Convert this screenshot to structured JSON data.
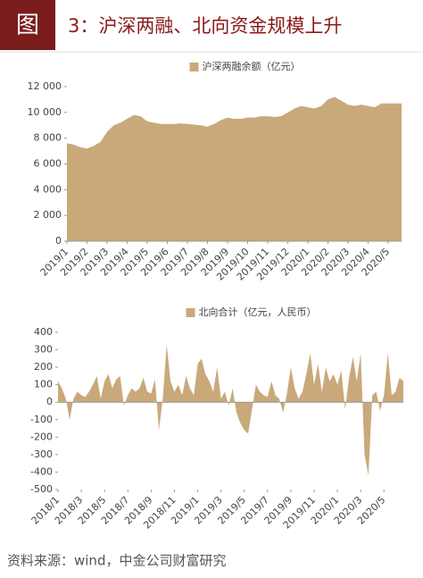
{
  "header": {
    "badge": "图",
    "title": "3：沪深两融、北向资金规模上升"
  },
  "chart_data": [
    {
      "type": "area",
      "categories": [
        "2019/1",
        null,
        null,
        "2019/2",
        null,
        null,
        "2019/3",
        null,
        null,
        "2019/4",
        null,
        null,
        "2019/5",
        null,
        null,
        "2019/6",
        null,
        null,
        "2019/7",
        null,
        null,
        "2019/8",
        null,
        null,
        "2019/9",
        null,
        null,
        "2019/10",
        null,
        null,
        "2019/11",
        null,
        null,
        "2019/12",
        null,
        null,
        "2020/1",
        null,
        null,
        "2020/2",
        null,
        null,
        "2020/3",
        null,
        null,
        "2020/4",
        null,
        null,
        "2020/5",
        null,
        null
      ],
      "series": [
        {
          "name": "沪深两融余额（亿元）",
          "color": "#c9a97a",
          "values": [
            7600,
            7500,
            7300,
            7200,
            7400,
            7700,
            8500,
            9000,
            9200,
            9500,
            9800,
            9700,
            9300,
            9200,
            9100,
            9100,
            9100,
            9150,
            9100,
            9050,
            9000,
            8900,
            9100,
            9400,
            9600,
            9500,
            9500,
            9600,
            9600,
            9700,
            9700,
            9650,
            9700,
            10000,
            10300,
            10500,
            10400,
            10300,
            10500,
            11000,
            11200,
            10900,
            10600,
            10500,
            10600,
            10500,
            10400,
            10700,
            10700,
            10700,
            10700
          ]
        }
      ],
      "ylim": [
        0,
        12000
      ],
      "yticks": [
        0,
        {
          "value": 2000,
          "label": "2 000"
        },
        {
          "value": 4000,
          "label": "4 000"
        },
        {
          "value": 6000,
          "label": "6 000"
        },
        {
          "value": 8000,
          "label": "8 000"
        },
        {
          "value": 10000,
          "label": "10 000"
        },
        {
          "value": 12000,
          "label": "12 000"
        }
      ]
    },
    {
      "type": "area",
      "categories": [
        "2018/1",
        null,
        null,
        null,
        null,
        null,
        "2018/3",
        null,
        null,
        null,
        null,
        null,
        "2018/5",
        null,
        null,
        null,
        null,
        null,
        "2018/7",
        null,
        null,
        null,
        null,
        null,
        "2018/9",
        null,
        null,
        null,
        null,
        null,
        "2018/11",
        null,
        null,
        null,
        null,
        null,
        "2019/1",
        null,
        null,
        null,
        null,
        null,
        "2019/3",
        null,
        null,
        null,
        null,
        null,
        "2019/5",
        null,
        null,
        null,
        null,
        null,
        "2019/7",
        null,
        null,
        null,
        null,
        null,
        "2019/9",
        null,
        null,
        null,
        null,
        null,
        "2019/11",
        null,
        null,
        null,
        null,
        null,
        "2020/1",
        null,
        null,
        null,
        null,
        null,
        "2020/3",
        null,
        null,
        null,
        null,
        null,
        "2020/5",
        null,
        null,
        null,
        null,
        null
      ],
      "series": [
        {
          "name": "北向合计（亿元，人民币）",
          "color": "#c9a97a",
          "values": [
            120,
            80,
            20,
            -100,
            20,
            60,
            40,
            30,
            60,
            100,
            150,
            20,
            120,
            160,
            80,
            130,
            150,
            -20,
            40,
            80,
            60,
            80,
            140,
            60,
            50,
            130,
            -160,
            20,
            330,
            120,
            60,
            100,
            40,
            150,
            80,
            40,
            220,
            250,
            160,
            120,
            60,
            200,
            20,
            60,
            -20,
            80,
            -60,
            -120,
            -160,
            -180,
            -40,
            100,
            60,
            40,
            30,
            120,
            40,
            20,
            -60,
            50,
            200,
            80,
            20,
            60,
            160,
            280,
            100,
            220,
            60,
            200,
            120,
            160,
            100,
            180,
            -40,
            140,
            260,
            120,
            280,
            -300,
            -420,
            40,
            60,
            -50,
            40,
            280,
            40,
            60,
            140,
            120
          ]
        }
      ],
      "ylim": [
        -500,
        400
      ],
      "yticks": [
        -500,
        -400,
        -300,
        -200,
        -100,
        0,
        100,
        200,
        300,
        400
      ]
    }
  ],
  "source": "资料来源：wind，中金公司财富研究"
}
